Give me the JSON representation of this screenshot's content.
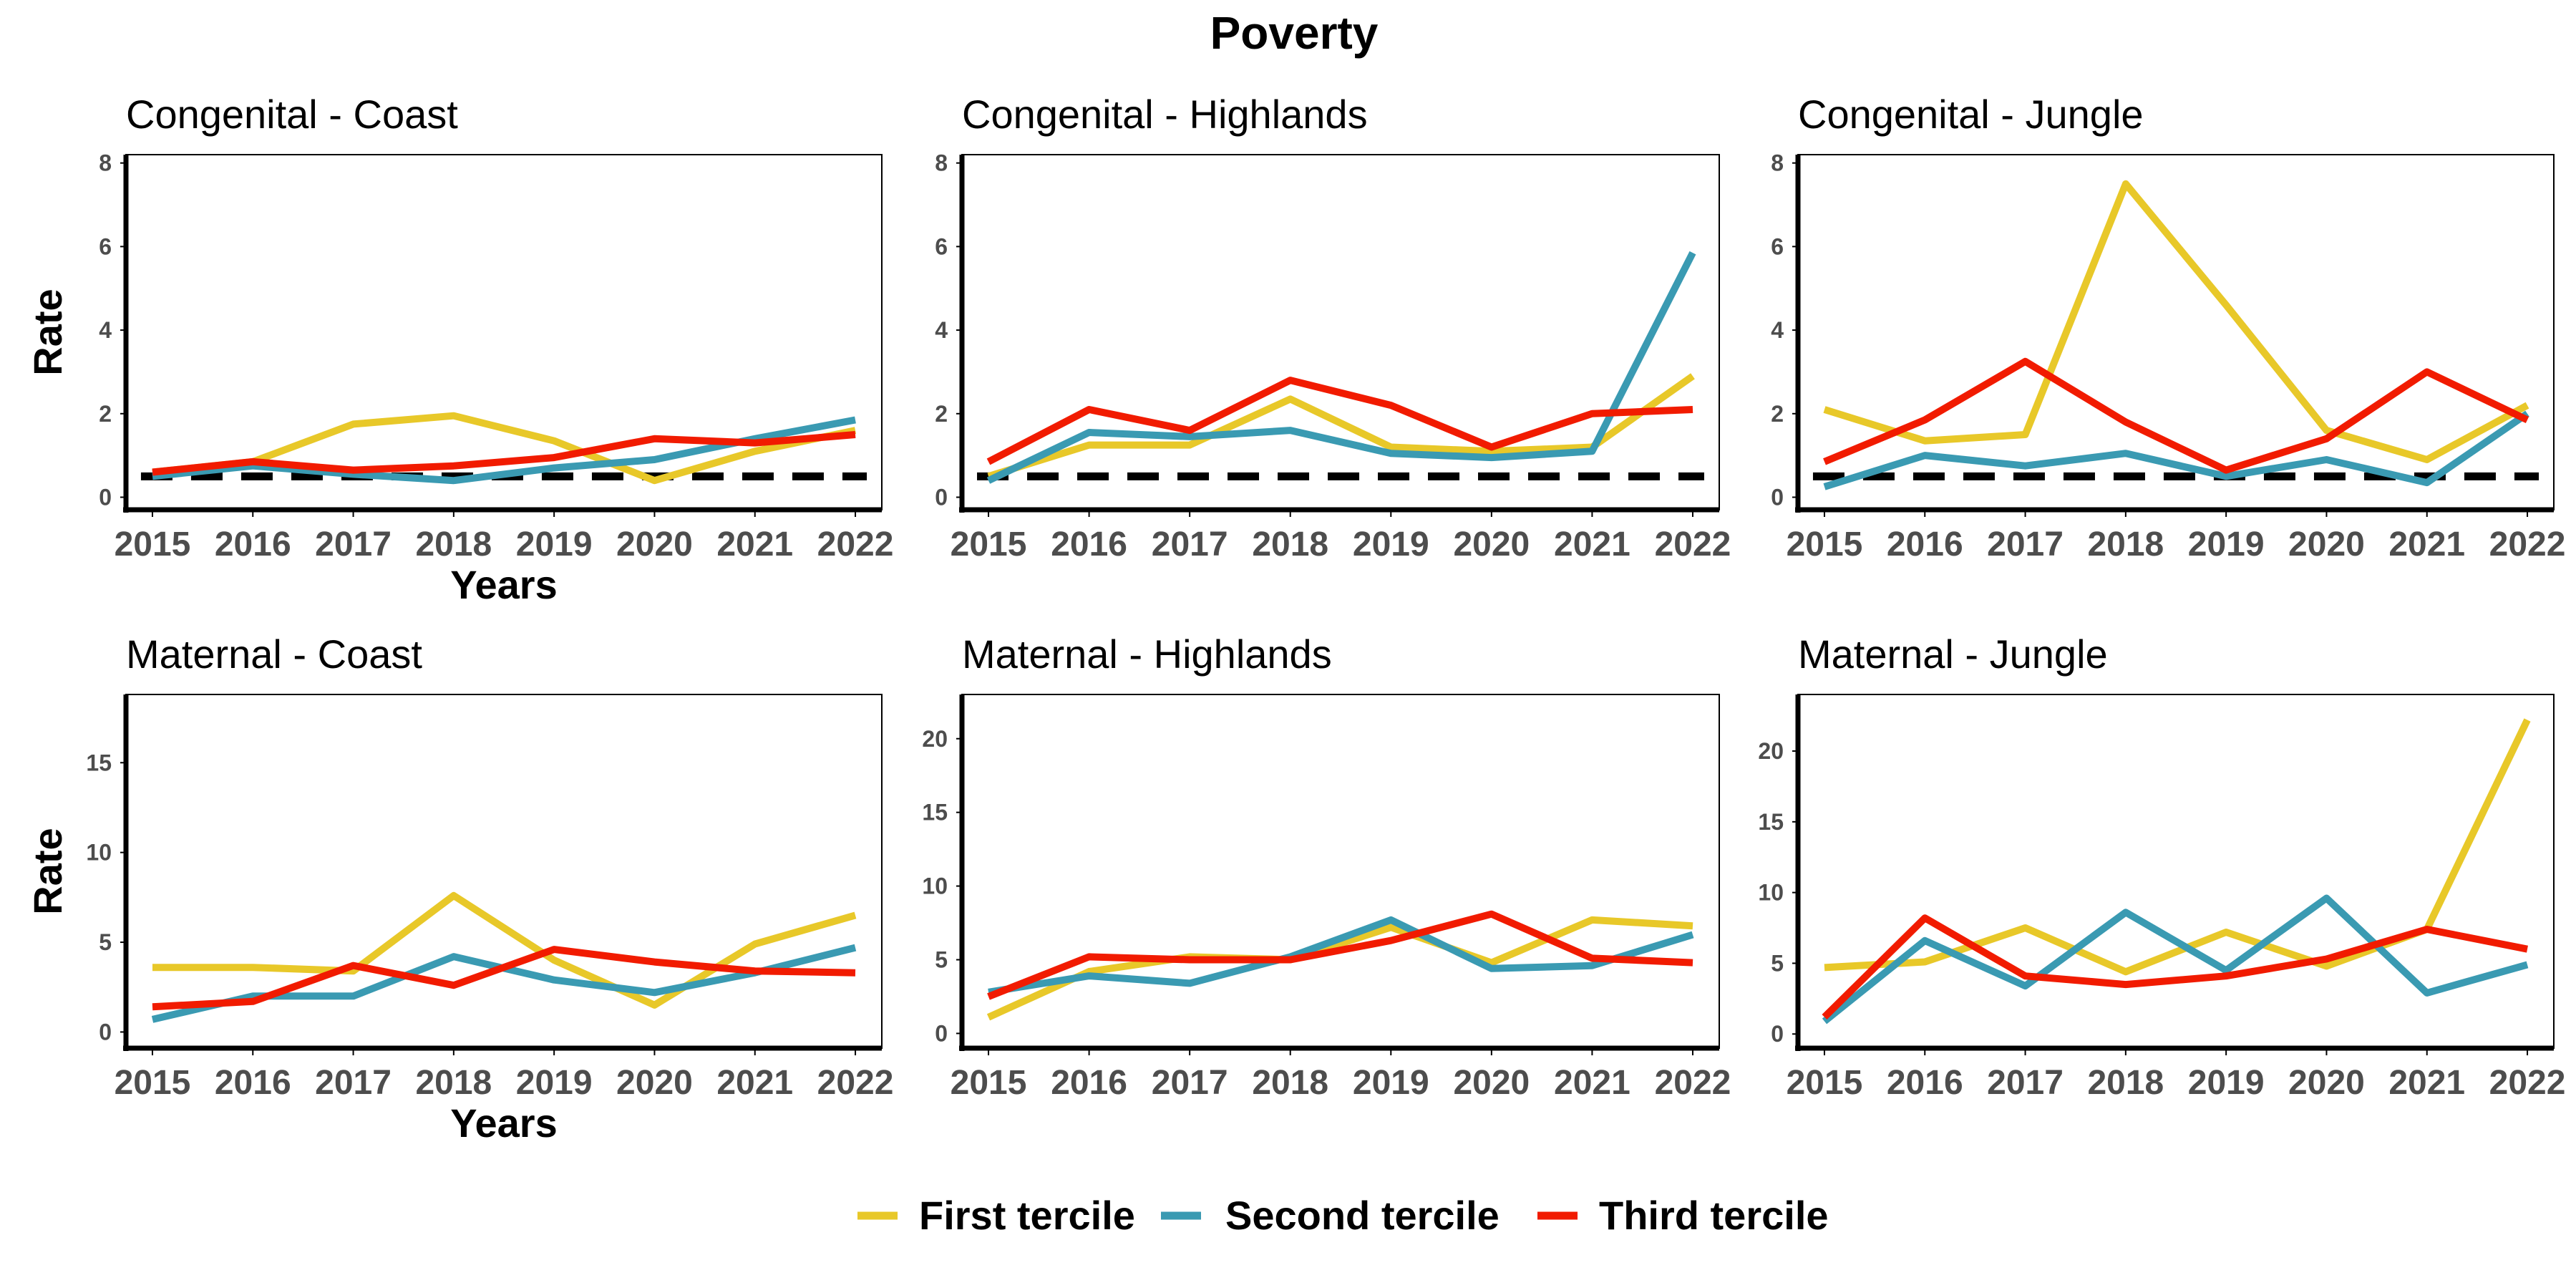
{
  "figure": {
    "title": "Poverty",
    "ylabel": "Rate",
    "xlabel": "Years",
    "legend_position": "bottom"
  },
  "legend": {
    "items": [
      {
        "label": "First tercile",
        "color": "#E8C829"
      },
      {
        "label": "Second tercile",
        "color": "#3A9AB2"
      },
      {
        "label": "Third tercile",
        "color": "#F11B00"
      }
    ]
  },
  "chart_data": [
    {
      "type": "line",
      "title": "Congenital - Coast",
      "x": [
        "2015",
        "2016",
        "2017",
        "2018",
        "2019",
        "2020",
        "2021",
        "2022"
      ],
      "ylim": [
        -0.3,
        8.2
      ],
      "yticks": [
        0,
        2,
        4,
        6,
        8
      ],
      "reference_line": 0.5,
      "series": [
        {
          "name": "First tercile",
          "color": "#E8C829",
          "values": [
            0.6,
            0.85,
            1.75,
            1.95,
            1.35,
            0.4,
            1.1,
            1.6
          ]
        },
        {
          "name": "Second tercile",
          "color": "#3A9AB2",
          "values": [
            0.5,
            0.75,
            0.55,
            0.4,
            0.7,
            0.9,
            1.4,
            1.85
          ]
        },
        {
          "name": "Third tercile",
          "color": "#F11B00",
          "values": [
            0.6,
            0.85,
            0.65,
            0.75,
            0.95,
            1.4,
            1.3,
            1.5
          ]
        }
      ]
    },
    {
      "type": "line",
      "title": "Congenital - Highlands",
      "x": [
        "2015",
        "2016",
        "2017",
        "2018",
        "2019",
        "2020",
        "2021",
        "2022"
      ],
      "ylim": [
        -0.3,
        8.2
      ],
      "yticks": [
        0,
        2,
        4,
        6,
        8
      ],
      "reference_line": 0.5,
      "series": [
        {
          "name": "First tercile",
          "color": "#E8C829",
          "values": [
            0.5,
            1.25,
            1.25,
            2.35,
            1.2,
            1.1,
            1.2,
            2.9
          ]
        },
        {
          "name": "Second tercile",
          "color": "#3A9AB2",
          "values": [
            0.4,
            1.55,
            1.45,
            1.6,
            1.05,
            0.95,
            1.1,
            5.85
          ]
        },
        {
          "name": "Third tercile",
          "color": "#F11B00",
          "values": [
            0.85,
            2.1,
            1.6,
            2.8,
            2.2,
            1.2,
            2.0,
            2.1
          ]
        }
      ]
    },
    {
      "type": "line",
      "title": "Congenital - Jungle",
      "x": [
        "2015",
        "2016",
        "2017",
        "2018",
        "2019",
        "2020",
        "2021",
        "2022"
      ],
      "ylim": [
        -0.3,
        8.2
      ],
      "yticks": [
        0,
        2,
        4,
        6,
        8
      ],
      "reference_line": 0.5,
      "series": [
        {
          "name": "First tercile",
          "color": "#E8C829",
          "values": [
            2.1,
            1.35,
            1.5,
            7.5,
            4.6,
            1.6,
            0.9,
            2.2
          ]
        },
        {
          "name": "Second tercile",
          "color": "#3A9AB2",
          "values": [
            0.25,
            1.0,
            0.75,
            1.05,
            0.5,
            0.9,
            0.35,
            2.0
          ]
        },
        {
          "name": "Third tercile",
          "color": "#F11B00",
          "values": [
            0.85,
            1.85,
            3.25,
            1.8,
            0.65,
            1.4,
            3.0,
            1.85
          ]
        }
      ]
    },
    {
      "type": "line",
      "title": "Maternal - Coast",
      "x": [
        "2015",
        "2016",
        "2017",
        "2018",
        "2019",
        "2020",
        "2021",
        "2022"
      ],
      "ylim": [
        -0.9,
        18.8
      ],
      "yticks": [
        0,
        5,
        10,
        15
      ],
      "series": [
        {
          "name": "First tercile",
          "color": "#E8C829",
          "values": [
            3.6,
            3.6,
            3.4,
            7.6,
            4.0,
            1.5,
            4.9,
            6.5
          ]
        },
        {
          "name": "Second tercile",
          "color": "#3A9AB2",
          "values": [
            0.7,
            2.0,
            2.0,
            4.2,
            2.9,
            2.2,
            3.3,
            4.7
          ]
        },
        {
          "name": "Third tercile",
          "color": "#F11B00",
          "values": [
            1.4,
            1.7,
            3.7,
            2.6,
            4.6,
            3.9,
            3.4,
            3.3
          ]
        }
      ]
    },
    {
      "type": "line",
      "title": "Maternal - Highlands",
      "x": [
        "2015",
        "2016",
        "2017",
        "2018",
        "2019",
        "2020",
        "2021",
        "2022"
      ],
      "ylim": [
        -1.0,
        23.0
      ],
      "yticks": [
        0,
        5,
        10,
        15,
        20
      ],
      "series": [
        {
          "name": "First tercile",
          "color": "#E8C829",
          "values": [
            1.1,
            4.2,
            5.2,
            5.0,
            7.2,
            4.8,
            7.7,
            7.3
          ]
        },
        {
          "name": "Second tercile",
          "color": "#3A9AB2",
          "values": [
            2.8,
            3.9,
            3.4,
            5.2,
            7.7,
            4.4,
            4.6,
            6.7
          ]
        },
        {
          "name": "Third tercile",
          "color": "#F11B00",
          "values": [
            2.5,
            5.2,
            5.0,
            5.0,
            6.3,
            8.1,
            5.1,
            4.8
          ]
        }
      ]
    },
    {
      "type": "line",
      "title": "Maternal - Jungle",
      "x": [
        "2015",
        "2016",
        "2017",
        "2018",
        "2019",
        "2020",
        "2021",
        "2022"
      ],
      "ylim": [
        -1.0,
        24.0
      ],
      "yticks": [
        0,
        5,
        10,
        15,
        20
      ],
      "series": [
        {
          "name": "First tercile",
          "color": "#E8C829",
          "values": [
            4.7,
            5.1,
            7.5,
            4.4,
            7.2,
            4.8,
            7.4,
            22.2
          ]
        },
        {
          "name": "Second tercile",
          "color": "#3A9AB2",
          "values": [
            0.9,
            6.6,
            3.4,
            8.6,
            4.5,
            9.6,
            2.9,
            4.9
          ]
        },
        {
          "name": "Third tercile",
          "color": "#F11B00",
          "values": [
            1.2,
            8.2,
            4.1,
            3.5,
            4.1,
            5.3,
            7.4,
            6.0
          ]
        }
      ]
    }
  ]
}
